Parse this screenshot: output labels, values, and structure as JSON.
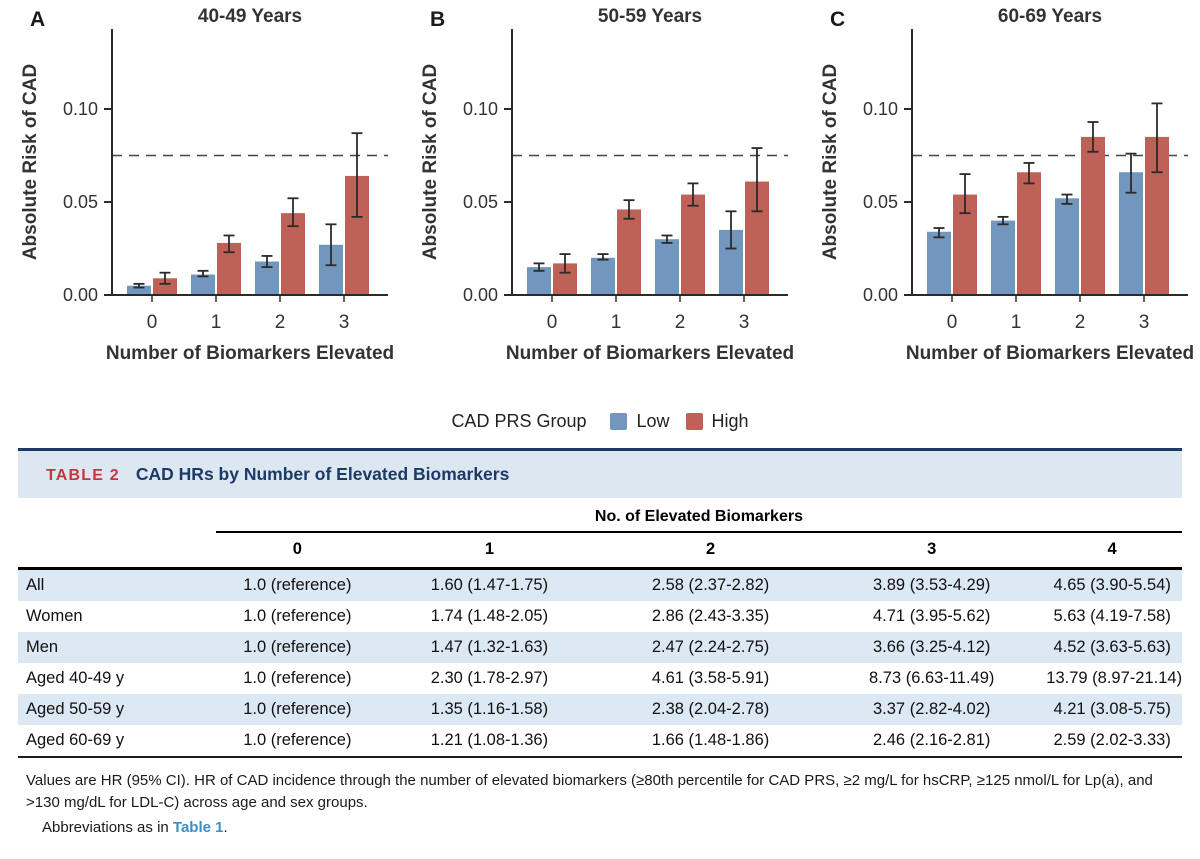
{
  "figure": {
    "y_axis_label": "Absolute Risk of CAD",
    "x_axis_label": "Number of Biomarkers Elevated",
    "dashed_reference_line": 0.075,
    "legend": {
      "title": "CAD PRS Group",
      "items": [
        {
          "label": "Low",
          "color": "#7296BD"
        },
        {
          "label": "High",
          "color": "#BE6157"
        }
      ]
    }
  },
  "chart_data": [
    {
      "type": "bar",
      "panel_label": "A",
      "title": "40-49 Years",
      "categories": [
        "0",
        "1",
        "2",
        "3"
      ],
      "xlabel": "Number of Biomarkers Elevated",
      "ylabel": "Absolute Risk of CAD",
      "ylim": [
        0,
        0.145
      ],
      "yticks": [
        0,
        0.05,
        0.1
      ],
      "ytick_labels": [
        "0.00",
        "0.05",
        "0.10"
      ],
      "dashed_line_y": 0.075,
      "grid": false,
      "series": [
        {
          "name": "Low",
          "color": "#7296BD",
          "values": [
            0.005,
            0.011,
            0.018,
            0.027
          ],
          "ci_low": [
            0.004,
            0.01,
            0.015,
            0.016
          ],
          "ci_high": [
            0.006,
            0.013,
            0.021,
            0.038
          ]
        },
        {
          "name": "High",
          "color": "#BE6157",
          "values": [
            0.009,
            0.028,
            0.044,
            0.064
          ],
          "ci_low": [
            0.006,
            0.023,
            0.037,
            0.042
          ],
          "ci_high": [
            0.012,
            0.032,
            0.052,
            0.087
          ]
        }
      ]
    },
    {
      "type": "bar",
      "panel_label": "B",
      "title": "50-59 Years",
      "categories": [
        "0",
        "1",
        "2",
        "3"
      ],
      "xlabel": "Number of Biomarkers Elevated",
      "ylabel": "Absolute Risk of CAD",
      "ylim": [
        0,
        0.145
      ],
      "yticks": [
        0,
        0.05,
        0.1
      ],
      "ytick_labels": [
        "0.00",
        "0.05",
        "0.10"
      ],
      "dashed_line_y": 0.075,
      "grid": false,
      "series": [
        {
          "name": "Low",
          "color": "#7296BD",
          "values": [
            0.015,
            0.02,
            0.03,
            0.035
          ],
          "ci_low": [
            0.013,
            0.019,
            0.028,
            0.025
          ],
          "ci_high": [
            0.017,
            0.022,
            0.032,
            0.045
          ]
        },
        {
          "name": "High",
          "color": "#BE6157",
          "values": [
            0.017,
            0.046,
            0.054,
            0.061
          ],
          "ci_low": [
            0.012,
            0.041,
            0.048,
            0.045
          ],
          "ci_high": [
            0.022,
            0.051,
            0.06,
            0.079
          ]
        }
      ]
    },
    {
      "type": "bar",
      "panel_label": "C",
      "title": "60-69 Years",
      "categories": [
        "0",
        "1",
        "2",
        "3"
      ],
      "xlabel": "Number of Biomarkers Elevated",
      "ylabel": "Absolute Risk of CAD",
      "ylim": [
        0,
        0.145
      ],
      "yticks": [
        0,
        0.05,
        0.1
      ],
      "ytick_labels": [
        "0.00",
        "0.05",
        "0.10"
      ],
      "dashed_line_y": 0.075,
      "grid": false,
      "series": [
        {
          "name": "Low",
          "color": "#7296BD",
          "values": [
            0.034,
            0.04,
            0.052,
            0.066
          ],
          "ci_low": [
            0.031,
            0.038,
            0.049,
            0.055
          ],
          "ci_high": [
            0.036,
            0.042,
            0.054,
            0.076
          ]
        },
        {
          "name": "High",
          "color": "#BE6157",
          "values": [
            0.054,
            0.066,
            0.085,
            0.085
          ],
          "ci_low": [
            0.044,
            0.06,
            0.077,
            0.066
          ],
          "ci_high": [
            0.065,
            0.071,
            0.093,
            0.103
          ]
        }
      ]
    }
  ],
  "table": {
    "label": "TABLE 2",
    "title": "CAD HRs by Number of Elevated Biomarkers",
    "group_header": "No. of Elevated Biomarkers",
    "columns": [
      "0",
      "1",
      "2",
      "3",
      "4"
    ],
    "rows": [
      {
        "label": "All",
        "values": [
          "1.0 (reference)",
          "1.60 (1.47-1.75)",
          "2.58 (2.37-2.82)",
          "3.89 (3.53-4.29)",
          "4.65 (3.90-5.54)"
        ]
      },
      {
        "label": "Women",
        "values": [
          "1.0 (reference)",
          "1.74 (1.48-2.05)",
          "2.86 (2.43-3.35)",
          "4.71 (3.95-5.62)",
          "5.63 (4.19-7.58)"
        ]
      },
      {
        "label": "Men",
        "values": [
          "1.0 (reference)",
          "1.47 (1.32-1.63)",
          "2.47 (2.24-2.75)",
          "3.66 (3.25-4.12)",
          "4.52 (3.63-5.63)"
        ]
      },
      {
        "label": "Aged 40-49 y",
        "values": [
          "1.0 (reference)",
          "2.30 (1.78-2.97)",
          "4.61 (3.58-5.91)",
          "8.73 (6.63-11.49)",
          "13.79 (8.97-21.14)"
        ]
      },
      {
        "label": "Aged 50-59 y",
        "values": [
          "1.0 (reference)",
          "1.35 (1.16-1.58)",
          "2.38 (2.04-2.78)",
          "3.37 (2.82-4.02)",
          "4.21 (3.08-5.75)"
        ]
      },
      {
        "label": "Aged 60-69 y",
        "values": [
          "1.0 (reference)",
          "1.21 (1.08-1.36)",
          "1.66 (1.48-1.86)",
          "2.46 (2.16-2.81)",
          "2.59 (2.02-3.33)"
        ]
      }
    ],
    "stripe_color": "#DCE8F4",
    "accent_red": "#C5383A",
    "accent_navy": "#1C3A66"
  },
  "footnote": {
    "text": "Values are HR (95% CI). HR of CAD incidence through the number of elevated biomarkers (≥80th percentile for CAD PRS, ≥2 mg/L for hsCRP, ≥125 nmol/L for Lp(a), and >130 mg/dL for LDL-C) across age and sex groups.",
    "abbrev_prefix": "Abbreviations as in ",
    "abbrev_link": "Table 1",
    "abbrev_suffix": ".",
    "link_color": "#3E8EC4"
  }
}
